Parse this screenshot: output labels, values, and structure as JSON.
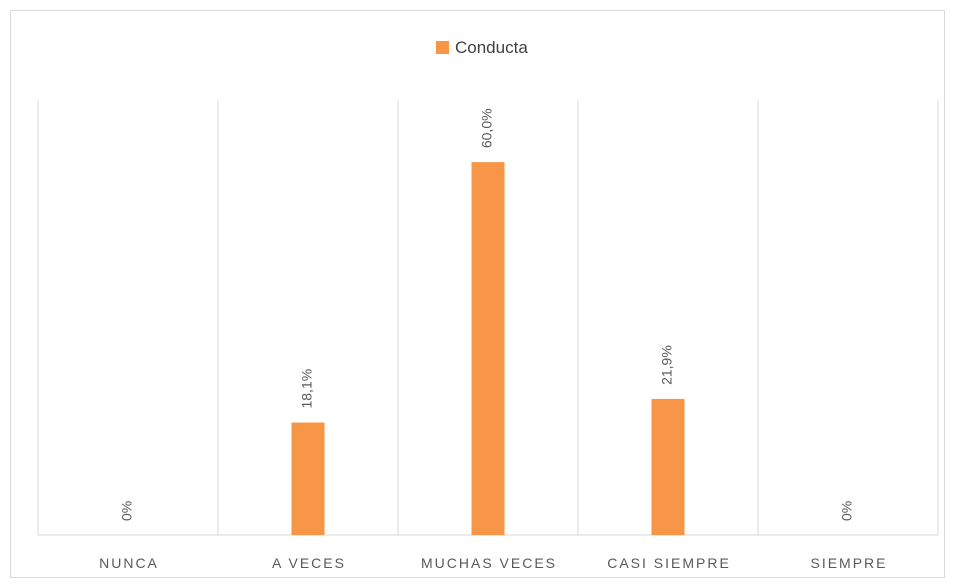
{
  "chart_data": {
    "type": "bar",
    "categories": [
      "NUNCA",
      "A VECES",
      "MUCHAS VECES",
      "CASI SIEMPRE",
      "SIEMPRE"
    ],
    "series": [
      {
        "name": "Conducta",
        "color": "#f79646",
        "values": [
          0,
          18.1,
          60,
          21.9,
          0
        ],
        "value_labels": [
          "0%",
          "18,1%",
          "60,0%",
          "21,9%",
          "0%"
        ]
      }
    ],
    "ylim": [
      0,
      70
    ],
    "legend": "top"
  }
}
